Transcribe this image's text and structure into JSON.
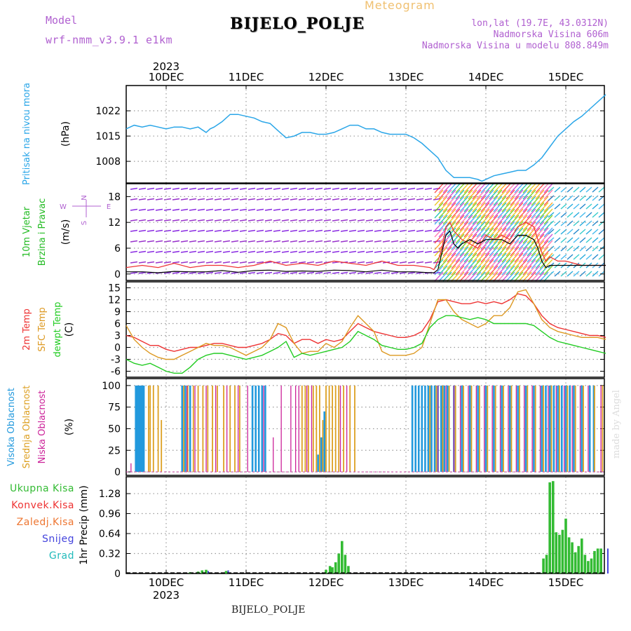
{
  "header": {
    "model_label": "Model",
    "model_name": "wrf-nmm_v3.9.1 e1km",
    "title": "BIJELO_POLJE",
    "meteogram": "Meteogram",
    "lonlat": "lon,lat (19.7E, 43.0312N)",
    "elevation": "Nadmorska Visina 606m",
    "model_elevation": "Nadmorska Visina u modelu 808.849m",
    "year": "2023",
    "footer_station": "BIJELO_POLJE",
    "credit": "made by Angel"
  },
  "colors": {
    "pressure": "#2aa6e8",
    "wind_label": "#22bb22",
    "temp2m": "#ee3333",
    "sfc": "#dd9922",
    "dewpt": "#22cc22",
    "high_cloud": "#2299dd",
    "mid_cloud": "#dda022",
    "low_cloud": "#cc2299",
    "precip_total": "#33bb33",
    "precip_conv": "#ee3333",
    "precip_frozen": "#ee7733",
    "snow": "#4444dd",
    "hail": "#22bbbb",
    "purple_text": "#b060d0"
  },
  "chart_data": [
    {
      "id": "pressure",
      "type": "line",
      "ylabel_name": "Pritisak na nivou mora",
      "ylabel_unit": "(hPa)",
      "yticks": [
        1008,
        1015,
        1022
      ],
      "ylim": [
        1002,
        1029
      ],
      "x_dates": [
        "10DEC",
        "11DEC",
        "12DEC",
        "13DEC",
        "14DEC",
        "15DEC"
      ],
      "x": [
        -0.5,
        -0.4,
        -0.3,
        -0.2,
        -0.1,
        0,
        0.1,
        0.2,
        0.3,
        0.4,
        0.5,
        0.55,
        0.6,
        0.7,
        0.8,
        0.9,
        1.0,
        1.1,
        1.2,
        1.3,
        1.4,
        1.5,
        1.6,
        1.7,
        1.8,
        1.9,
        2.0,
        2.1,
        2.2,
        2.3,
        2.4,
        2.5,
        2.6,
        2.7,
        2.8,
        2.9,
        3.0,
        3.1,
        3.2,
        3.3,
        3.4,
        3.5,
        3.6,
        3.7,
        3.8,
        3.9,
        3.95,
        4.0,
        4.1,
        4.2,
        4.3,
        4.4,
        4.5,
        4.6,
        4.7,
        4.8,
        4.9,
        5.0,
        5.1,
        5.2,
        5.3,
        5.5
      ],
      "values": [
        1017,
        1018,
        1017.5,
        1018,
        1017.5,
        1017,
        1017.5,
        1017.5,
        1017,
        1017.5,
        1016,
        1017,
        1017.5,
        1019,
        1021,
        1021,
        1020.5,
        1020,
        1019,
        1018.5,
        1016.5,
        1014.5,
        1015,
        1016,
        1016,
        1015.5,
        1015.5,
        1016,
        1017,
        1018,
        1018,
        1017,
        1017,
        1016,
        1015.5,
        1015.5,
        1015.5,
        1014.5,
        1013,
        1011,
        1009,
        1005.5,
        1003.5,
        1003.5,
        1003.5,
        1003,
        1002.5,
        1003,
        1004,
        1004.5,
        1005,
        1005.5,
        1005.5,
        1007,
        1009,
        1012,
        1015,
        1017,
        1019,
        1020.5,
        1022.5,
        1026.5
      ]
    },
    {
      "id": "wind",
      "type": "line",
      "ylabel_name_1": "10m Vjetar",
      "ylabel_name_2": "Brzina i Pravac",
      "ylabel_unit": "(m/s)",
      "compass_n": "N",
      "compass_s": "S",
      "compass_w": "W",
      "compass_e": "E",
      "yticks": [
        0,
        6,
        12,
        18
      ],
      "ylim": [
        -1.5,
        21
      ],
      "x": [
        -0.5,
        -0.3,
        -0.1,
        0.1,
        0.3,
        0.5,
        0.7,
        0.9,
        1.1,
        1.3,
        1.5,
        1.7,
        1.9,
        2.1,
        2.3,
        2.5,
        2.7,
        2.9,
        3.1,
        3.3,
        3.35,
        3.4,
        3.45,
        3.5,
        3.55,
        3.6,
        3.65,
        3.7,
        3.8,
        3.9,
        4.0,
        4.1,
        4.2,
        4.3,
        4.4,
        4.5,
        4.6,
        4.65,
        4.7,
        4.75,
        4.8,
        4.9,
        5.0,
        5.2,
        5.5
      ],
      "gust": [
        1.5,
        2,
        1.5,
        2.5,
        1.5,
        2,
        2,
        1.5,
        2,
        3,
        2,
        2.5,
        2,
        3,
        2.5,
        2,
        3,
        2,
        2,
        1.5,
        1,
        3,
        6,
        11,
        12,
        10,
        9,
        8,
        7,
        6,
        9,
        8,
        9,
        8,
        11,
        12,
        11,
        8,
        5,
        3,
        4,
        3,
        3,
        2,
        2
      ],
      "speed": [
        0.5,
        0.5,
        0.3,
        0.6,
        0.5,
        0.5,
        0.8,
        0.4,
        0.8,
        0.9,
        0.6,
        0.7,
        0.6,
        0.9,
        0.8,
        0.5,
        0.9,
        0.5,
        0.5,
        0.3,
        0.3,
        1,
        5,
        9,
        10,
        7,
        6,
        7,
        8,
        7,
        8,
        8,
        8,
        7,
        9,
        9,
        8,
        6,
        3,
        1.5,
        2,
        2,
        2,
        2,
        2
      ],
      "gust_series_color": "#ee3333",
      "speed_series_color": "#000000"
    },
    {
      "id": "temperature",
      "type": "line",
      "ylabel_name_1": "2m Temp",
      "ylabel_name_2": "SFC Temp",
      "ylabel_name_3": "dewpt Temp",
      "ylabel_unit": "(C)",
      "yticks": [
        -6,
        -3,
        0,
        3,
        6,
        9,
        12,
        15
      ],
      "ylim": [
        -7.5,
        16.5
      ],
      "x": [
        -0.5,
        -0.4,
        -0.3,
        -0.2,
        -0.1,
        0,
        0.1,
        0.2,
        0.3,
        0.4,
        0.5,
        0.6,
        0.7,
        0.8,
        0.9,
        1.0,
        1.1,
        1.2,
        1.3,
        1.4,
        1.5,
        1.6,
        1.7,
        1.8,
        1.9,
        2.0,
        2.1,
        2.2,
        2.3,
        2.4,
        2.5,
        2.6,
        2.7,
        2.8,
        2.9,
        3.0,
        3.1,
        3.2,
        3.3,
        3.4,
        3.5,
        3.6,
        3.7,
        3.8,
        3.9,
        4.0,
        4.1,
        4.2,
        4.3,
        4.4,
        4.5,
        4.6,
        4.7,
        4.8,
        4.9,
        5.0,
        5.1,
        5.2,
        5.3,
        5.4,
        5.5
      ],
      "t2m": [
        3,
        2.5,
        1.5,
        0.5,
        0.5,
        -0.5,
        -1,
        -0.5,
        0,
        0,
        0.5,
        1,
        1,
        0.5,
        0,
        0,
        0.5,
        1,
        2,
        3.5,
        3,
        1,
        2,
        2,
        1,
        2,
        1.5,
        2,
        4,
        6,
        5,
        4,
        3.5,
        3,
        2.5,
        2.5,
        3,
        4,
        7,
        11.5,
        12,
        11.5,
        11,
        11,
        11.5,
        11,
        11.5,
        11,
        12,
        13.5,
        13,
        11,
        8,
        6,
        5,
        4.5,
        4,
        3.5,
        3,
        3,
        2.5
      ],
      "sfc": [
        5.5,
        2,
        0,
        -1.5,
        -2.5,
        -3,
        -3,
        -2,
        -1,
        0,
        1,
        0.5,
        0.5,
        0,
        -1,
        -2,
        -1,
        0,
        2,
        6,
        5,
        1,
        -1.5,
        -1,
        -1,
        1,
        0,
        1.5,
        5,
        8,
        6,
        4,
        -1,
        -2,
        -2,
        -2,
        -1.5,
        0,
        6,
        12,
        12,
        9,
        7,
        6,
        5,
        6,
        8,
        8,
        10,
        14,
        14.5,
        11,
        7,
        5,
        4,
        3.5,
        3,
        2.5,
        2.5,
        2.5,
        2
      ],
      "dewpt": [
        -3,
        -4,
        -4.5,
        -4,
        -5,
        -6,
        -6.5,
        -6.5,
        -5,
        -3,
        -2,
        -1.5,
        -1.5,
        -2,
        -2.5,
        -3,
        -2.5,
        -2,
        -1,
        0,
        1.5,
        -2.5,
        -1.5,
        -2,
        -1.5,
        -1,
        -0.5,
        0,
        1.5,
        4,
        3,
        2,
        0.5,
        0,
        -0.5,
        -0.5,
        0,
        1,
        5,
        7,
        8,
        8,
        7.5,
        7,
        7.5,
        7,
        6,
        6,
        6,
        6,
        6,
        5.5,
        4,
        2.5,
        1.5,
        1,
        0.5,
        0,
        -0.5,
        -1,
        -1.5
      ]
    },
    {
      "id": "cloud",
      "type": "bar",
      "ylabel_name_1": "Visoka Oblacnost",
      "ylabel_name_2": "Srednja Oblacnost",
      "ylabel_name_3": "Niska Oblacnost",
      "ylabel_unit": "(%)",
      "yticks": [
        0,
        25,
        50,
        75,
        100
      ],
      "ylim": [
        -4,
        108
      ],
      "high_x": [
        -0.38,
        -0.36,
        -0.34,
        -0.32,
        -0.3,
        -0.28,
        0.2,
        0.24,
        0.3,
        1.08,
        1.12,
        1.16,
        1.2,
        1.24,
        1.9,
        1.94,
        1.98,
        3.08,
        3.12,
        3.16,
        3.2,
        3.24,
        3.28,
        3.32,
        3.36,
        3.4,
        3.44,
        3.48,
        3.52,
        3.6,
        3.7,
        3.8,
        3.9,
        4.0,
        4.1,
        4.2,
        4.3,
        4.4,
        4.5,
        4.6,
        4.7,
        4.75,
        4.8,
        4.85,
        4.9,
        4.95,
        5.0,
        5.05,
        5.1,
        5.2,
        5.3,
        5.35
      ],
      "high_v": [
        100,
        100,
        100,
        100,
        100,
        100,
        100,
        100,
        100,
        100,
        100,
        100,
        100,
        100,
        20,
        40,
        70,
        100,
        100,
        100,
        100,
        100,
        100,
        100,
        100,
        100,
        100,
        100,
        100,
        100,
        100,
        100,
        100,
        100,
        100,
        100,
        100,
        100,
        100,
        100,
        100,
        100,
        100,
        100,
        100,
        100,
        100,
        100,
        100,
        100,
        100,
        100
      ],
      "mid_x": [
        -0.22,
        -0.2,
        -0.16,
        -0.1,
        -0.06,
        0.22,
        0.27,
        0.34,
        0.4,
        0.46,
        0.52,
        0.58,
        0.64,
        0.72,
        0.8,
        0.86,
        0.92,
        1.7,
        1.74,
        1.78,
        1.84,
        1.88,
        1.92,
        1.96,
        2.0,
        2.04,
        2.08,
        2.12,
        2.16,
        2.22,
        2.3,
        2.36,
        3.3,
        3.38,
        3.46,
        3.54,
        3.62,
        3.72,
        3.82,
        3.92,
        4.02,
        4.12,
        4.22,
        4.32,
        4.42,
        4.52,
        4.62,
        4.72,
        4.82,
        4.92,
        5.02,
        5.12,
        5.22,
        5.36,
        5.46
      ],
      "mid_v": [
        100,
        100,
        100,
        100,
        60,
        100,
        100,
        100,
        100,
        100,
        100,
        100,
        100,
        100,
        100,
        100,
        100,
        100,
        100,
        100,
        100,
        100,
        100,
        60,
        100,
        100,
        100,
        100,
        100,
        100,
        100,
        100,
        100,
        100,
        100,
        100,
        100,
        100,
        100,
        100,
        100,
        100,
        100,
        100,
        100,
        100,
        100,
        100,
        100,
        100,
        100,
        100,
        100,
        100,
        100
      ],
      "low_x": [
        -0.44,
        0.26,
        0.36,
        0.5,
        0.62,
        0.76,
        0.9,
        1.02,
        1.22,
        1.34,
        1.44,
        1.56,
        1.62,
        1.66,
        1.76,
        1.82,
        2.18,
        2.26,
        3.4,
        3.5,
        3.6,
        3.68,
        3.78,
        3.88,
        3.98,
        4.08,
        4.18,
        4.28,
        4.38,
        4.48,
        4.58,
        4.68,
        4.78,
        4.88,
        4.98,
        5.08,
        5.18,
        5.28,
        5.44
      ],
      "low_v": [
        10,
        100,
        100,
        100,
        100,
        100,
        100,
        100,
        100,
        40,
        100,
        100,
        100,
        100,
        100,
        100,
        100,
        100,
        100,
        100,
        100,
        100,
        100,
        100,
        100,
        100,
        100,
        100,
        100,
        100,
        100,
        100,
        100,
        100,
        100,
        100,
        100,
        100,
        100
      ]
    },
    {
      "id": "precip",
      "type": "bar",
      "ylabel_name_1": "Ukupna Kisa",
      "ylabel_name_2": "Konvek.Kisa",
      "ylabel_name_3": "Zaledj.Kisa",
      "ylabel_name_4": "Snijeg",
      "ylabel_name_5": "Grad",
      "ylabel_unit": "1hr Precip (mm)",
      "yticks": [
        0,
        0.32,
        0.64,
        0.96,
        1.28
      ],
      "ylim": [
        0,
        1.55
      ],
      "total_x": [
        0.3,
        0.4,
        0.45,
        0.5,
        0.75,
        2.0,
        2.05,
        2.08,
        2.12,
        2.16,
        2.2,
        2.24,
        2.28,
        4.72,
        4.76,
        4.8,
        4.84,
        4.88,
        4.92,
        4.96,
        5.0,
        5.04,
        5.08,
        5.12,
        5.16,
        5.2,
        5.24,
        5.28,
        5.32,
        5.36,
        5.4,
        5.44
      ],
      "total_v": [
        0.02,
        0.03,
        0.05,
        0.06,
        0.04,
        0.06,
        0.12,
        0.1,
        0.18,
        0.32,
        0.52,
        0.3,
        0.12,
        0.24,
        0.3,
        1.46,
        1.48,
        0.66,
        0.62,
        0.7,
        0.88,
        0.58,
        0.5,
        0.34,
        0.44,
        0.56,
        0.3,
        0.2,
        0.24,
        0.36,
        0.4,
        0.4
      ],
      "snow_x": [
        0.5,
        0.75,
        5.5
      ],
      "snow_v": [
        0.04,
        0.05,
        0.4
      ]
    }
  ]
}
